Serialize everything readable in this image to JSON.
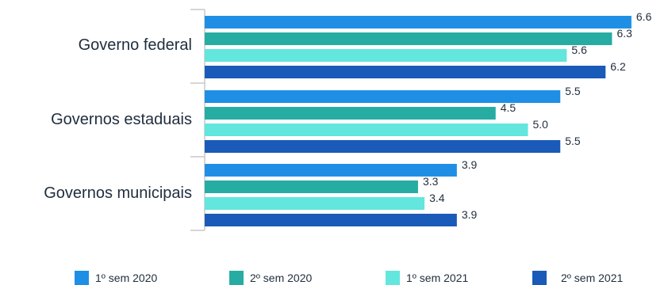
{
  "chart_data": {
    "type": "bar",
    "orientation": "horizontal",
    "categories": [
      "Governo federal",
      "Governos estaduais",
      "Governos municipais"
    ],
    "series": [
      {
        "name": "1º sem 2020",
        "color": "#1f8fe6",
        "values": [
          6.6,
          5.5,
          3.9
        ],
        "labels": [
          "6.6",
          "5.5",
          "3.9"
        ]
      },
      {
        "name": "2º sem 2020",
        "color": "#27aca3",
        "values": [
          6.3,
          4.5,
          3.3
        ],
        "labels": [
          "6.3",
          "4.5",
          "3.3"
        ]
      },
      {
        "name": "1º sem 2021",
        "color": "#62e6de",
        "values": [
          5.6,
          5.0,
          3.4
        ],
        "labels": [
          "5.6",
          "5.0",
          "3.4"
        ]
      },
      {
        "name": "2º sem 2021",
        "color": "#1a5ab8",
        "values": [
          6.2,
          5.5,
          3.9
        ],
        "labels": [
          "6.2",
          "5.5",
          "3.9"
        ]
      }
    ],
    "xlim": [
      0,
      6.8
    ],
    "grid": false,
    "legend": "bottom"
  }
}
